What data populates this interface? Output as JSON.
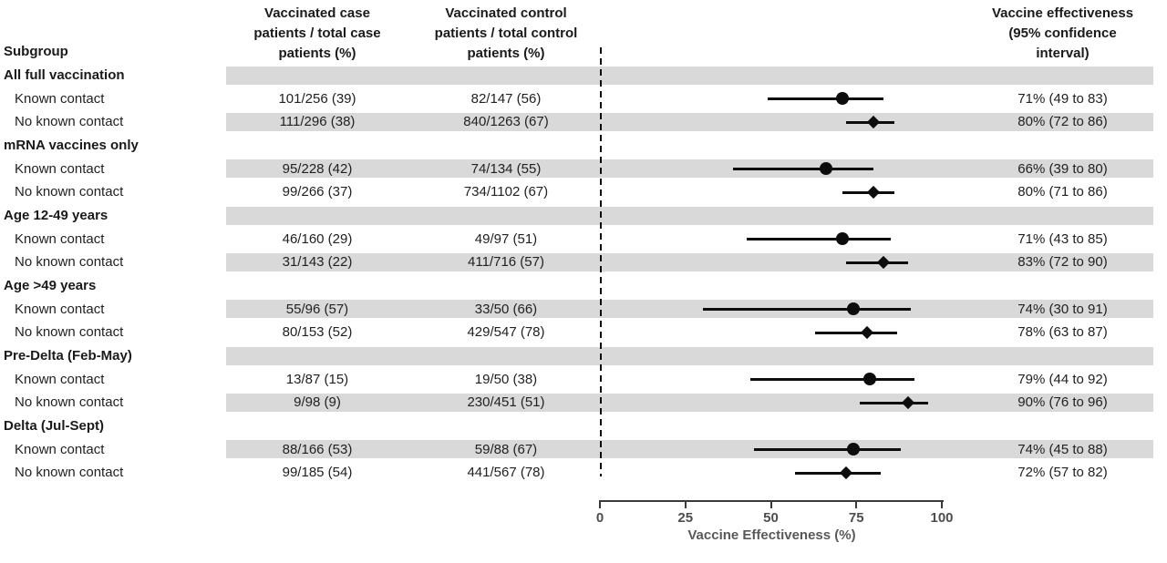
{
  "headers": {
    "subgroup": "Subgroup",
    "case_col": "Vaccinated case\npatients / total case\npatients (%)",
    "control_col": "Vaccinated control\npatients / total control\npatients (%)",
    "ve_col": "Vaccine effectiveness\n(95% confidence\ninterval)"
  },
  "colors": {
    "band": "#d9d9d9",
    "marker": "#0d0d0d",
    "axis": "#3a3a3a",
    "axis_title_text": "#595959",
    "text": "#212121"
  },
  "chart_data": {
    "type": "scatter",
    "variant": "forest-plot",
    "xlabel": "Vaccine Effectiveness (%)",
    "xlim": [
      0,
      100
    ],
    "xticks": [
      0,
      25,
      50,
      75,
      100
    ],
    "reference_line_x": 0,
    "grid": false,
    "legend": "none",
    "marker_legend": {
      "circle": "Known contact",
      "diamond": "No known contact"
    },
    "groups": [
      {
        "label": "All full vaccination",
        "rows": [
          {
            "label": "Known contact",
            "case": "101/256 (39)",
            "control": "82/147 (56)",
            "ve": 71,
            "lo": 49,
            "hi": 83,
            "ve_text": "71% (49 to 83)",
            "marker": "circle"
          },
          {
            "label": "No known contact",
            "case": "111/296 (38)",
            "control": "840/1263 (67)",
            "ve": 80,
            "lo": 72,
            "hi": 86,
            "ve_text": "80% (72 to 86)",
            "marker": "diamond"
          }
        ]
      },
      {
        "label": "mRNA vaccines only",
        "rows": [
          {
            "label": "Known contact",
            "case": "95/228 (42)",
            "control": "74/134 (55)",
            "ve": 66,
            "lo": 39,
            "hi": 80,
            "ve_text": "66% (39 to 80)",
            "marker": "circle"
          },
          {
            "label": "No known contact",
            "case": "99/266 (37)",
            "control": "734/1102 (67)",
            "ve": 80,
            "lo": 71,
            "hi": 86,
            "ve_text": "80% (71 to 86)",
            "marker": "diamond"
          }
        ]
      },
      {
        "label": "Age 12-49 years",
        "rows": [
          {
            "label": "Known contact",
            "case": "46/160 (29)",
            "control": "49/97 (51)",
            "ve": 71,
            "lo": 43,
            "hi": 85,
            "ve_text": "71% (43 to 85)",
            "marker": "circle"
          },
          {
            "label": "No known contact",
            "case": "31/143 (22)",
            "control": "411/716 (57)",
            "ve": 83,
            "lo": 72,
            "hi": 90,
            "ve_text": "83% (72 to 90)",
            "marker": "diamond"
          }
        ]
      },
      {
        "label": "Age >49 years",
        "rows": [
          {
            "label": "Known contact",
            "case": "55/96 (57)",
            "control": "33/50 (66)",
            "ve": 74,
            "lo": 30,
            "hi": 91,
            "ve_text": "74% (30 to 91)",
            "marker": "circle"
          },
          {
            "label": "No known contact",
            "case": "80/153 (52)",
            "control": "429/547 (78)",
            "ve": 78,
            "lo": 63,
            "hi": 87,
            "ve_text": "78% (63 to 87)",
            "marker": "diamond"
          }
        ]
      },
      {
        "label": "Pre-Delta (Feb-May)",
        "rows": [
          {
            "label": "Known contact",
            "case": "13/87 (15)",
            "control": "19/50 (38)",
            "ve": 79,
            "lo": 44,
            "hi": 92,
            "ve_text": "79% (44 to 92)",
            "marker": "circle"
          },
          {
            "label": "No known contact",
            "case": "9/98 (9)",
            "control": "230/451 (51)",
            "ve": 90,
            "lo": 76,
            "hi": 96,
            "ve_text": "90% (76 to 96)",
            "marker": "diamond"
          }
        ]
      },
      {
        "label": "Delta (Jul-Sept)",
        "rows": [
          {
            "label": "Known contact",
            "case": "88/166 (53)",
            "control": "59/88 (67)",
            "ve": 74,
            "lo": 45,
            "hi": 88,
            "ve_text": "74% (45 to 88)",
            "marker": "circle"
          },
          {
            "label": "No known contact",
            "case": "99/185 (54)",
            "control": "441/567 (78)",
            "ve": 72,
            "lo": 57,
            "hi": 82,
            "ve_text": "72% (57 to 82)",
            "marker": "diamond"
          }
        ]
      }
    ]
  }
}
